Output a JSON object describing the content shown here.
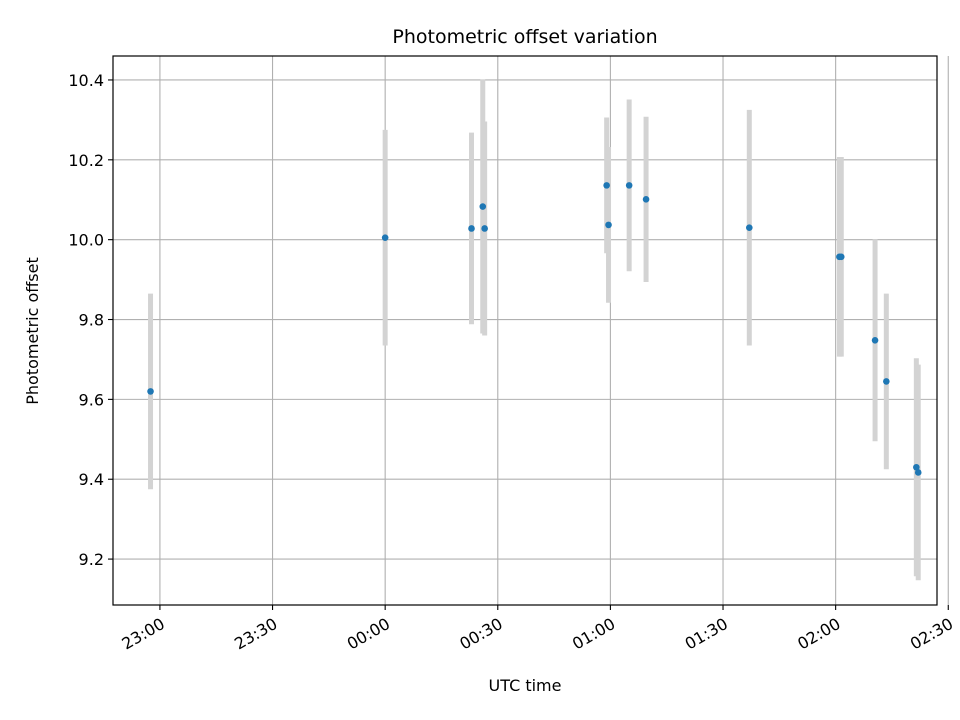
{
  "chart_data": {
    "type": "scatter",
    "title": "Photometric offset variation",
    "xlabel": "UTC time",
    "ylabel": "Photometric offset",
    "x_unit": "UTC clock time (HH:MM), 22:58 on day 1 through 02:22 on day 2",
    "xlim": [
      "22:47:30",
      "02:27:00"
    ],
    "ylim": [
      9.085,
      10.46
    ],
    "x_ticks": [
      "23:00",
      "23:30",
      "00:00",
      "00:30",
      "01:00",
      "01:30",
      "02:00",
      "02:30"
    ],
    "y_ticks": [
      "9.2",
      "9.4",
      "9.6",
      "9.8",
      "10.0",
      "10.2",
      "10.4"
    ],
    "y_tick_values": [
      9.2,
      9.4,
      9.6,
      9.8,
      10.0,
      10.2,
      10.4
    ],
    "grid": true,
    "marker_color": "#1f77b4",
    "errorbar_color": "#d3d3d3",
    "points": [
      {
        "x": "22:57:30",
        "y": 9.62,
        "err": 0.245
      },
      {
        "x": "00:00:00",
        "y": 10.005,
        "err": 0.27
      },
      {
        "x": "00:23:00",
        "y": 10.028,
        "err": 0.24
      },
      {
        "x": "00:26:00",
        "y": 10.083,
        "err": 0.318
      },
      {
        "x": "00:26:30",
        "y": 10.028,
        "err": 0.268
      },
      {
        "x": "00:59:00",
        "y": 10.136,
        "err": 0.17
      },
      {
        "x": "00:59:30",
        "y": 10.037,
        "err": 0.195
      },
      {
        "x": "01:05:00",
        "y": 10.136,
        "err": 0.215
      },
      {
        "x": "01:09:30",
        "y": 10.101,
        "err": 0.207
      },
      {
        "x": "01:37:00",
        "y": 10.03,
        "err": 0.295
      },
      {
        "x": "02:01:00",
        "y": 9.957,
        "err": 0.25
      },
      {
        "x": "02:01:30",
        "y": 9.957,
        "err": 0.25
      },
      {
        "x": "02:10:30",
        "y": 9.748,
        "err": 0.253
      },
      {
        "x": "02:13:30",
        "y": 9.645,
        "err": 0.22
      },
      {
        "x": "02:21:30",
        "y": 9.43,
        "err": 0.273
      },
      {
        "x": "02:22:00",
        "y": 9.417,
        "err": 0.27
      }
    ]
  }
}
